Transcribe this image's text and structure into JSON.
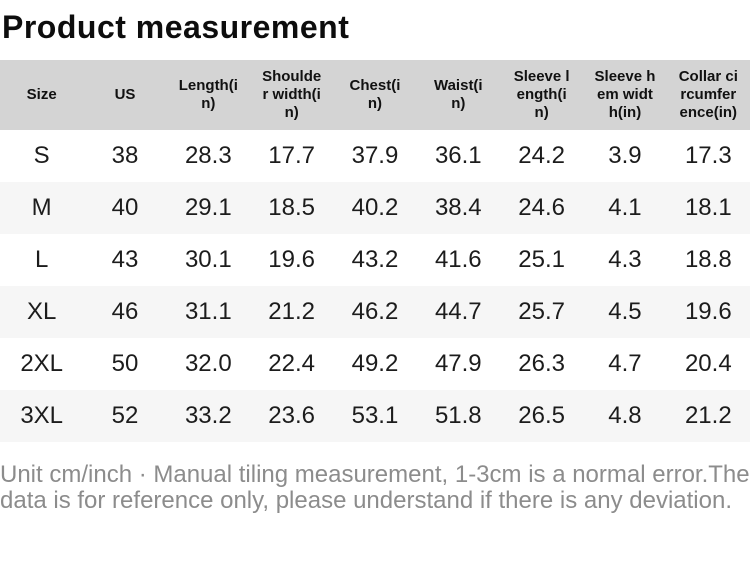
{
  "page": {
    "title": "Product measurement",
    "footnote": "Unit cm/inch · Manual tiling measurement, 1-3cm is a normal error.The data is for reference only, please understand if there is any deviation."
  },
  "table": {
    "columns": [
      "Size",
      "US",
      "Length(in)",
      "Shoulder width(in)",
      "Chest(in)",
      "Waist(in)",
      "Sleeve length(in)",
      "Sleeve hem width(in)",
      "Collar circumference(in)"
    ],
    "rows": [
      [
        "S",
        "38",
        "28.3",
        "17.7",
        "37.9",
        "36.1",
        "24.2",
        "3.9",
        "17.3"
      ],
      [
        "M",
        "40",
        "29.1",
        "18.5",
        "40.2",
        "38.4",
        "24.6",
        "4.1",
        "18.1"
      ],
      [
        "L",
        "43",
        "30.1",
        "19.6",
        "43.2",
        "41.6",
        "25.1",
        "4.3",
        "18.8"
      ],
      [
        "XL",
        "46",
        "31.1",
        "21.2",
        "46.2",
        "44.7",
        "25.7",
        "4.5",
        "19.6"
      ],
      [
        "2XL",
        "50",
        "32.0",
        "22.4",
        "49.2",
        "47.9",
        "26.3",
        "4.7",
        "20.4"
      ],
      [
        "3XL",
        "52",
        "33.2",
        "23.6",
        "53.1",
        "51.8",
        "26.5",
        "4.8",
        "21.2"
      ]
    ]
  },
  "colors": {
    "header_bg": "#d4d4d4",
    "row_alt_bg": "#f6f6f6",
    "footnote_text": "#8c8c8c"
  }
}
